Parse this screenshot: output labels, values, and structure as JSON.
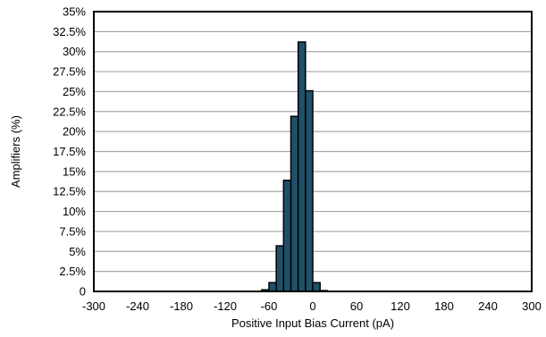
{
  "chart_data": {
    "type": "bar",
    "title": "",
    "xlabel": "Positive Input Bias Current (pA)",
    "ylabel": "Amplifiers (%)",
    "xlim": [
      -300,
      300
    ],
    "ylim": [
      0,
      35
    ],
    "bin_width": 10,
    "grid": true,
    "legend": "none",
    "colors": {
      "bar_fill": "#1F5069",
      "bar_stroke": "#000000",
      "grid": "#A6A6A6",
      "axis": "#000000"
    },
    "x_tick_labels": [
      "-300",
      "-240",
      "-180",
      "-120",
      "-60",
      "0",
      "60",
      "120",
      "180",
      "240",
      "300"
    ],
    "y_tick_labels": [
      "0",
      "2.5%",
      "5%",
      "7.5%",
      "10%",
      "12.5%",
      "15%",
      "17.5%",
      "20%",
      "22.5%",
      "25%",
      "27.5%",
      "30%",
      "32.5%",
      "35%"
    ],
    "bins": [
      {
        "x0": -70,
        "x1": -60,
        "value": 0.2
      },
      {
        "x0": -60,
        "x1": -50,
        "value": 1.1
      },
      {
        "x0": -50,
        "x1": -40,
        "value": 5.7
      },
      {
        "x0": -40,
        "x1": -30,
        "value": 13.9
      },
      {
        "x0": -30,
        "x1": -20,
        "value": 21.9
      },
      {
        "x0": -20,
        "x1": -10,
        "value": 31.2
      },
      {
        "x0": -10,
        "x1": 0,
        "value": 25.1
      },
      {
        "x0": 0,
        "x1": 10,
        "value": 1.1
      },
      {
        "x0": 10,
        "x1": 20,
        "value": 0.1
      }
    ]
  }
}
